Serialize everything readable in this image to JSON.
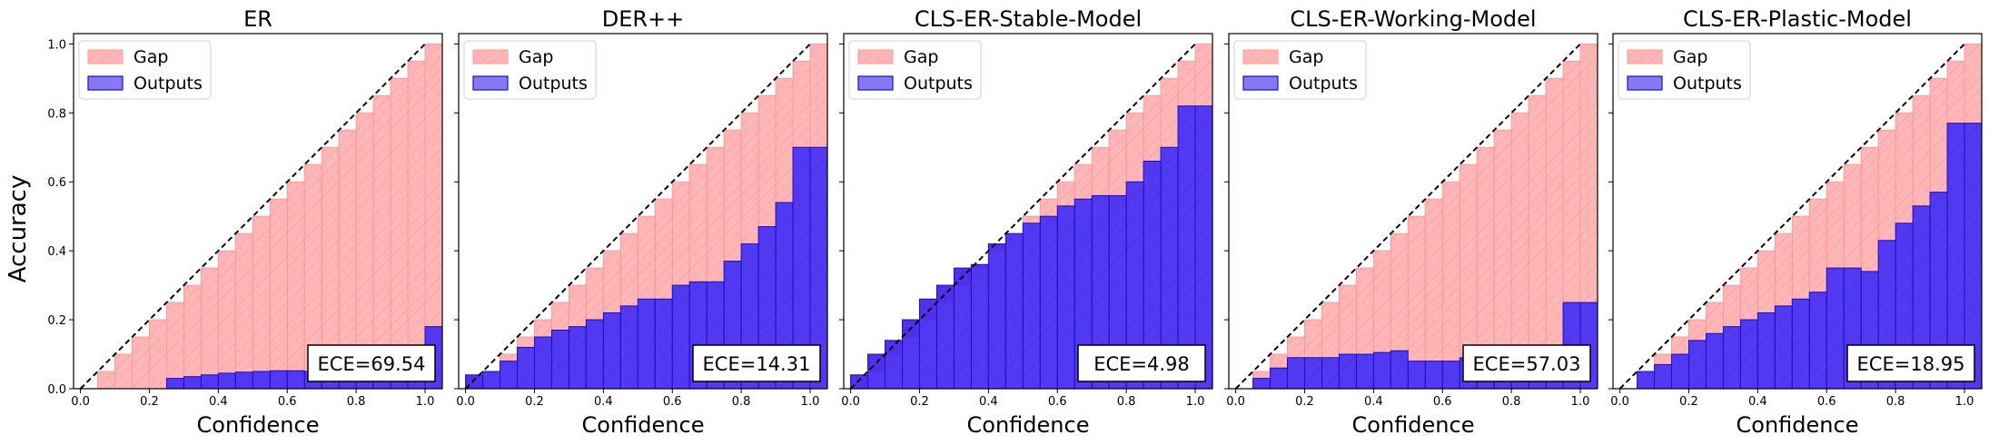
{
  "figure": {
    "ylabel": "Accuracy"
  },
  "colors": {
    "gap_fill": "#ff7a7a",
    "gap_edge": "#ff9a9a",
    "output_fill": "#3a1ef0",
    "output_edge": "#1a10c8",
    "diagonal": "#000000"
  },
  "chart_data": [
    {
      "type": "bar",
      "title": "ER",
      "xlabel": "Confidence",
      "ylabel": "Accuracy",
      "xlim": [
        -0.02,
        1.05
      ],
      "ylim": [
        0,
        1.03
      ],
      "xticks": [
        "0.0",
        "0.2",
        "0.4",
        "0.6",
        "0.8",
        "1.0"
      ],
      "yticks": [
        "0.0",
        "0.2",
        "0.4",
        "0.6",
        "0.8",
        "1.0"
      ],
      "legend": {
        "position": "top-left",
        "entries": [
          "Gap",
          "Outputs"
        ]
      },
      "annotation": "ECE=69.54",
      "bins": [
        0.0,
        0.05,
        0.1,
        0.15,
        0.2,
        0.25,
        0.3,
        0.35,
        0.4,
        0.45,
        0.5,
        0.55,
        0.6,
        0.65,
        0.7,
        0.75,
        0.8,
        0.85,
        0.9,
        0.95,
        1.0
      ],
      "series": [
        {
          "name": "Gap",
          "values": [
            0.0,
            0.05,
            0.1,
            0.15,
            0.2,
            0.25,
            0.3,
            0.35,
            0.4,
            0.45,
            0.5,
            0.55,
            0.6,
            0.65,
            0.7,
            0.75,
            0.8,
            0.85,
            0.9,
            0.95,
            1.0
          ]
        },
        {
          "name": "Outputs",
          "values": [
            0.0,
            0.0,
            0.0,
            0.0,
            0.0,
            0.03,
            0.035,
            0.04,
            0.045,
            0.048,
            0.05,
            0.052,
            0.052,
            0.05,
            0.05,
            0.05,
            0.05,
            0.05,
            0.05,
            0.05,
            0.18
          ]
        }
      ]
    },
    {
      "type": "bar",
      "title": "DER++",
      "xlabel": "Confidence",
      "xlim": [
        -0.02,
        1.05
      ],
      "ylim": [
        0,
        1.03
      ],
      "xticks": [
        "0.0",
        "0.2",
        "0.4",
        "0.6",
        "0.8",
        "1.0"
      ],
      "legend": {
        "position": "top-left",
        "entries": [
          "Gap",
          "Outputs"
        ]
      },
      "annotation": "ECE=14.31",
      "bins": [
        0.0,
        0.05,
        0.1,
        0.15,
        0.2,
        0.25,
        0.3,
        0.35,
        0.4,
        0.45,
        0.5,
        0.55,
        0.6,
        0.65,
        0.7,
        0.75,
        0.8,
        0.85,
        0.9,
        0.95,
        1.0
      ],
      "series": [
        {
          "name": "Gap",
          "values": [
            0.0,
            0.05,
            0.1,
            0.15,
            0.2,
            0.25,
            0.3,
            0.35,
            0.4,
            0.45,
            0.5,
            0.55,
            0.6,
            0.65,
            0.7,
            0.75,
            0.8,
            0.85,
            0.9,
            0.95,
            1.0
          ]
        },
        {
          "name": "Outputs",
          "values": [
            0.04,
            0.05,
            0.08,
            0.12,
            0.15,
            0.17,
            0.18,
            0.2,
            0.22,
            0.24,
            0.26,
            0.26,
            0.3,
            0.31,
            0.31,
            0.37,
            0.42,
            0.47,
            0.54,
            0.7,
            0.7
          ]
        }
      ]
    },
    {
      "type": "bar",
      "title": "CLS-ER-Stable-Model",
      "xlabel": "Confidence",
      "xlim": [
        -0.02,
        1.05
      ],
      "ylim": [
        0,
        1.03
      ],
      "xticks": [
        "0.0",
        "0.2",
        "0.4",
        "0.6",
        "0.8",
        "1.0"
      ],
      "legend": {
        "position": "top-left",
        "entries": [
          "Gap",
          "Outputs"
        ]
      },
      "annotation": "ECE=4.98",
      "bins": [
        0.0,
        0.05,
        0.1,
        0.15,
        0.2,
        0.25,
        0.3,
        0.35,
        0.4,
        0.45,
        0.5,
        0.55,
        0.6,
        0.65,
        0.7,
        0.75,
        0.8,
        0.85,
        0.9,
        0.95,
        1.0
      ],
      "series": [
        {
          "name": "Gap",
          "values": [
            0.0,
            0.05,
            0.1,
            0.15,
            0.2,
            0.25,
            0.3,
            0.35,
            0.4,
            0.45,
            0.5,
            0.55,
            0.6,
            0.65,
            0.7,
            0.75,
            0.8,
            0.85,
            0.9,
            0.95,
            1.0
          ]
        },
        {
          "name": "Outputs",
          "values": [
            0.04,
            0.1,
            0.14,
            0.2,
            0.26,
            0.3,
            0.35,
            0.36,
            0.42,
            0.45,
            0.48,
            0.5,
            0.53,
            0.55,
            0.56,
            0.56,
            0.6,
            0.66,
            0.7,
            0.82,
            0.82
          ]
        }
      ]
    },
    {
      "type": "bar",
      "title": "CLS-ER-Working-Model",
      "xlabel": "Confidence",
      "xlim": [
        -0.02,
        1.05
      ],
      "ylim": [
        0,
        1.03
      ],
      "xticks": [
        "0.0",
        "0.2",
        "0.4",
        "0.6",
        "0.8",
        "1.0"
      ],
      "legend": {
        "position": "top-left",
        "entries": [
          "Gap",
          "Outputs"
        ]
      },
      "annotation": "ECE=57.03",
      "bins": [
        0.0,
        0.05,
        0.1,
        0.15,
        0.2,
        0.25,
        0.3,
        0.35,
        0.4,
        0.45,
        0.5,
        0.55,
        0.6,
        0.65,
        0.7,
        0.75,
        0.8,
        0.85,
        0.9,
        0.95,
        1.0
      ],
      "series": [
        {
          "name": "Gap",
          "values": [
            0.0,
            0.05,
            0.1,
            0.15,
            0.2,
            0.25,
            0.3,
            0.35,
            0.4,
            0.45,
            0.5,
            0.55,
            0.6,
            0.65,
            0.7,
            0.75,
            0.8,
            0.85,
            0.9,
            0.95,
            1.0
          ]
        },
        {
          "name": "Outputs",
          "values": [
            0.0,
            0.03,
            0.06,
            0.09,
            0.09,
            0.09,
            0.1,
            0.1,
            0.105,
            0.11,
            0.08,
            0.08,
            0.08,
            0.09,
            0.08,
            0.08,
            0.08,
            0.08,
            0.08,
            0.25,
            0.25
          ]
        }
      ]
    },
    {
      "type": "bar",
      "title": "CLS-ER-Plastic-Model",
      "xlabel": "Confidence",
      "xlim": [
        -0.02,
        1.05
      ],
      "ylim": [
        0,
        1.03
      ],
      "xticks": [
        "0.0",
        "0.2",
        "0.4",
        "0.6",
        "0.8",
        "1.0"
      ],
      "legend": {
        "position": "top-left",
        "entries": [
          "Gap",
          "Outputs"
        ]
      },
      "annotation": "ECE=18.95",
      "bins": [
        0.0,
        0.05,
        0.1,
        0.15,
        0.2,
        0.25,
        0.3,
        0.35,
        0.4,
        0.45,
        0.5,
        0.55,
        0.6,
        0.65,
        0.7,
        0.75,
        0.8,
        0.85,
        0.9,
        0.95,
        1.0
      ],
      "series": [
        {
          "name": "Gap",
          "values": [
            0.0,
            0.05,
            0.1,
            0.15,
            0.2,
            0.25,
            0.3,
            0.35,
            0.4,
            0.45,
            0.5,
            0.55,
            0.6,
            0.65,
            0.7,
            0.75,
            0.8,
            0.85,
            0.9,
            0.95,
            1.0
          ]
        },
        {
          "name": "Outputs",
          "values": [
            0.0,
            0.05,
            0.07,
            0.1,
            0.14,
            0.16,
            0.18,
            0.2,
            0.22,
            0.24,
            0.26,
            0.28,
            0.35,
            0.35,
            0.34,
            0.43,
            0.48,
            0.53,
            0.57,
            0.77,
            0.77
          ]
        }
      ]
    }
  ]
}
